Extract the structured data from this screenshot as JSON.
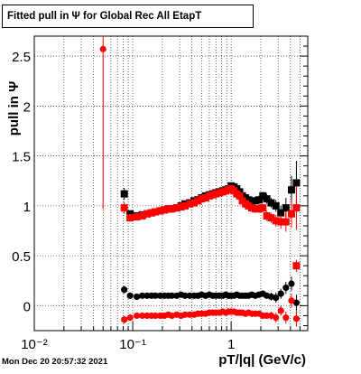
{
  "title": "Fitted pull in  Ψ  for Global Rec All EtapT",
  "timestamp": "Mon Dec 20 20:57:32 2021",
  "colors": {
    "black_series": "#000000",
    "red_series": "#ff0000",
    "grid": "#000000"
  },
  "chart_data": {
    "type": "scatter",
    "title": "Fitted pull in  Ψ  for Global Rec All EtapT",
    "xlabel": "pT/|q| (GeV/c)",
    "ylabel": "pull in Ψ",
    "x_scale": "log",
    "xlim": [
      0.01,
      6
    ],
    "ylim": [
      -0.25,
      2.7
    ],
    "grid": true,
    "x_tick_labels": [
      "10⁻²",
      "10⁻¹",
      "1"
    ],
    "x_major_ticks": [
      0.01,
      0.1,
      1
    ],
    "y_ticks": [
      0,
      0.5,
      1,
      1.5,
      2,
      2.5
    ],
    "y_tick_labels": [
      "0",
      "0.5",
      "1",
      "1.5",
      "2",
      "2.5"
    ],
    "series": [
      {
        "color": "#000000",
        "marker": "square",
        "x": [
          0.082,
          0.094,
          0.11,
          0.125,
          0.14,
          0.155,
          0.17,
          0.19,
          0.21,
          0.23,
          0.25,
          0.28,
          0.31,
          0.34,
          0.38,
          0.42,
          0.46,
          0.5,
          0.55,
          0.6,
          0.65,
          0.7,
          0.76,
          0.82,
          0.88,
          0.94,
          1.0,
          1.07,
          1.14,
          1.22,
          1.3,
          1.4,
          1.5,
          1.62,
          1.76,
          1.92,
          2.1,
          2.3,
          2.55,
          2.85,
          3.2,
          3.6,
          4.1,
          4.6
        ],
        "y": [
          1.12,
          0.92,
          0.9,
          0.91,
          0.92,
          0.93,
          0.94,
          0.95,
          0.96,
          0.97,
          0.97,
          0.98,
          1.0,
          1.02,
          1.03,
          1.05,
          1.06,
          1.08,
          1.1,
          1.11,
          1.12,
          1.13,
          1.14,
          1.15,
          1.16,
          1.17,
          1.2,
          1.19,
          1.17,
          1.14,
          1.1,
          1.08,
          1.06,
          1.05,
          1.05,
          1.06,
          1.1,
          1.07,
          1.03,
          1.0,
          0.93,
          0.98,
          1.16,
          1.23
        ],
        "yerr": [
          0.06,
          0.03,
          0.02,
          0.02,
          0.02,
          0.02,
          0.02,
          0.02,
          0.02,
          0.02,
          0.02,
          0.02,
          0.02,
          0.02,
          0.02,
          0.02,
          0.02,
          0.02,
          0.02,
          0.02,
          0.02,
          0.02,
          0.02,
          0.02,
          0.02,
          0.02,
          0.03,
          0.03,
          0.03,
          0.03,
          0.03,
          0.03,
          0.03,
          0.03,
          0.04,
          0.04,
          0.04,
          0.05,
          0.05,
          0.06,
          0.07,
          0.1,
          0.14,
          0.22
        ]
      },
      {
        "color": "#ff0000",
        "marker": "square",
        "x": [
          0.082,
          0.094,
          0.11,
          0.125,
          0.14,
          0.155,
          0.17,
          0.19,
          0.21,
          0.23,
          0.25,
          0.28,
          0.31,
          0.34,
          0.38,
          0.42,
          0.46,
          0.5,
          0.55,
          0.6,
          0.65,
          0.7,
          0.76,
          0.82,
          0.88,
          0.94,
          1.0,
          1.07,
          1.14,
          1.22,
          1.3,
          1.4,
          1.5,
          1.62,
          1.76,
          1.92,
          2.1,
          2.3,
          2.55,
          2.85,
          3.2,
          3.6,
          4.1,
          4.6
        ],
        "y": [
          0.98,
          0.88,
          0.89,
          0.9,
          0.92,
          0.93,
          0.94,
          0.95,
          0.96,
          0.97,
          0.97,
          0.98,
          0.99,
          1.0,
          1.02,
          1.03,
          1.05,
          1.07,
          1.08,
          1.1,
          1.11,
          1.12,
          1.13,
          1.14,
          1.15,
          1.16,
          1.17,
          1.15,
          1.12,
          1.1,
          1.05,
          1.02,
          1.0,
          0.98,
          0.97,
          0.97,
          0.98,
          0.9,
          0.88,
          0.85,
          0.84,
          0.84,
          0.92,
          0.98
        ],
        "yerr": [
          0.06,
          0.03,
          0.02,
          0.02,
          0.02,
          0.02,
          0.02,
          0.02,
          0.02,
          0.02,
          0.02,
          0.02,
          0.02,
          0.02,
          0.02,
          0.02,
          0.02,
          0.02,
          0.02,
          0.02,
          0.02,
          0.02,
          0.02,
          0.02,
          0.02,
          0.02,
          0.03,
          0.03,
          0.03,
          0.03,
          0.03,
          0.03,
          0.03,
          0.03,
          0.04,
          0.04,
          0.04,
          0.05,
          0.05,
          0.06,
          0.07,
          0.1,
          0.14,
          0.22
        ]
      },
      {
        "color": "#000000",
        "marker": "circle",
        "x": [
          0.082,
          0.094,
          0.11,
          0.125,
          0.14,
          0.155,
          0.17,
          0.19,
          0.21,
          0.23,
          0.25,
          0.28,
          0.31,
          0.34,
          0.38,
          0.42,
          0.46,
          0.5,
          0.55,
          0.6,
          0.65,
          0.7,
          0.76,
          0.82,
          0.88,
          0.94,
          1.0,
          1.07,
          1.14,
          1.22,
          1.3,
          1.4,
          1.5,
          1.62,
          1.76,
          1.92,
          2.1,
          2.3,
          2.55,
          2.85,
          3.2,
          3.6,
          4.1,
          4.6
        ],
        "y": [
          0.16,
          0.1,
          0.09,
          0.1,
          0.1,
          0.1,
          0.1,
          0.1,
          0.1,
          0.1,
          0.1,
          0.1,
          0.11,
          0.1,
          0.1,
          0.1,
          0.1,
          0.11,
          0.1,
          0.11,
          0.1,
          0.1,
          0.1,
          0.1,
          0.11,
          0.1,
          0.1,
          0.1,
          0.11,
          0.1,
          0.1,
          0.1,
          0.1,
          0.11,
          0.1,
          0.11,
          0.12,
          0.1,
          0.09,
          0.08,
          0.12,
          0.18,
          0.22,
          0.03
        ],
        "yerr": [
          0.04,
          0.02,
          0.02,
          0.02,
          0.02,
          0.02,
          0.02,
          0.02,
          0.02,
          0.02,
          0.02,
          0.02,
          0.02,
          0.02,
          0.02,
          0.02,
          0.02,
          0.02,
          0.02,
          0.02,
          0.02,
          0.02,
          0.02,
          0.02,
          0.02,
          0.02,
          0.02,
          0.02,
          0.02,
          0.02,
          0.02,
          0.02,
          0.02,
          0.02,
          0.02,
          0.03,
          0.03,
          0.03,
          0.04,
          0.05,
          0.05,
          0.06,
          0.07,
          0.08
        ]
      },
      {
        "color": "#ff0000",
        "marker": "circle",
        "x": [
          0.05,
          0.082,
          0.094,
          0.11,
          0.125,
          0.14,
          0.155,
          0.17,
          0.19,
          0.21,
          0.23,
          0.25,
          0.28,
          0.31,
          0.34,
          0.38,
          0.42,
          0.46,
          0.5,
          0.55,
          0.6,
          0.65,
          0.7,
          0.76,
          0.82,
          0.88,
          0.94,
          1.0,
          1.07,
          1.14,
          1.22,
          1.3,
          1.4,
          1.5,
          1.62,
          1.76,
          1.92,
          2.1,
          2.3,
          2.55,
          2.85,
          3.2,
          3.6,
          4.1,
          4.6
        ],
        "y": [
          2.57,
          -0.14,
          -0.12,
          -0.1,
          -0.1,
          -0.1,
          -0.1,
          -0.1,
          -0.1,
          -0.1,
          -0.09,
          -0.1,
          -0.09,
          -0.1,
          -0.09,
          -0.09,
          -0.09,
          -0.08,
          -0.08,
          -0.08,
          -0.07,
          -0.07,
          -0.07,
          -0.07,
          -0.06,
          -0.07,
          -0.06,
          -0.06,
          -0.06,
          -0.07,
          -0.07,
          -0.07,
          -0.08,
          -0.07,
          -0.08,
          -0.08,
          -0.08,
          -0.1,
          -0.1,
          -0.1,
          -0.12,
          -0.05,
          -0.12,
          0.05,
          -0.13
        ],
        "yerr": [
          1.6,
          0.04,
          0.02,
          0.02,
          0.02,
          0.02,
          0.02,
          0.02,
          0.02,
          0.02,
          0.02,
          0.02,
          0.02,
          0.02,
          0.02,
          0.02,
          0.02,
          0.02,
          0.02,
          0.02,
          0.02,
          0.02,
          0.02,
          0.02,
          0.02,
          0.02,
          0.02,
          0.02,
          0.02,
          0.02,
          0.02,
          0.02,
          0.02,
          0.02,
          0.02,
          0.02,
          0.03,
          0.03,
          0.03,
          0.04,
          0.05,
          0.05,
          0.06,
          0.07,
          0.08
        ]
      },
      {
        "color": "#ff0000",
        "marker": "square",
        "x": [
          4.6
        ],
        "y": [
          0.4
        ],
        "yerr": [
          0.06
        ]
      }
    ]
  }
}
